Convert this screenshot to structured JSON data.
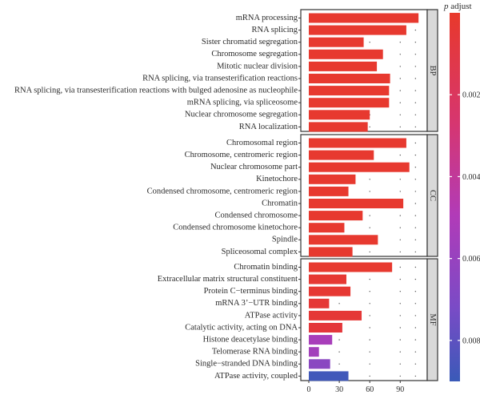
{
  "chart_data": {
    "type": "bar",
    "orientation": "horizontal",
    "x_ticks": [
      0,
      30,
      60,
      90
    ],
    "x_max": 112,
    "panels": [
      {
        "strip": "BP",
        "terms": [
          {
            "label": "mRNA processing",
            "count": 108,
            "p_adjust": 0.0001
          },
          {
            "label": "RNA splicing",
            "count": 96,
            "p_adjust": 0.0001
          },
          {
            "label": "Sister chromatid segregation",
            "count": 54,
            "p_adjust": 0.0001
          },
          {
            "label": "Chromosome segregation",
            "count": 73,
            "p_adjust": 0.0001
          },
          {
            "label": "Mitotic nuclear division",
            "count": 67,
            "p_adjust": 0.0001
          },
          {
            "label": "RNA splicing, via transesterification reactions",
            "count": 80,
            "p_adjust": 0.0001
          },
          {
            "label": "RNA splicing, via transesterification reactions with bulged adenosine as nucleophile",
            "count": 79,
            "p_adjust": 0.0001
          },
          {
            "label": "mRNA splicing, via spliceosome",
            "count": 79,
            "p_adjust": 0.0001
          },
          {
            "label": "Nuclear chromosome segregation",
            "count": 60,
            "p_adjust": 0.0001
          },
          {
            "label": "RNA localization",
            "count": 58,
            "p_adjust": 0.0001
          }
        ]
      },
      {
        "strip": "CC",
        "terms": [
          {
            "label": "Chromosomal region",
            "count": 96,
            "p_adjust": 0.0001
          },
          {
            "label": "Chromosome, centromeric region",
            "count": 64,
            "p_adjust": 0.0001
          },
          {
            "label": "Nuclear chromosome part",
            "count": 99,
            "p_adjust": 0.0001
          },
          {
            "label": "Kinetochore",
            "count": 46,
            "p_adjust": 0.0001
          },
          {
            "label": "Condensed chromosome, centromeric region",
            "count": 39,
            "p_adjust": 0.0001
          },
          {
            "label": "Chromatin",
            "count": 93,
            "p_adjust": 0.0001
          },
          {
            "label": "Condensed chromosome",
            "count": 53,
            "p_adjust": 0.0001
          },
          {
            "label": "Condensed chromosome kinetochore",
            "count": 35,
            "p_adjust": 0.0001
          },
          {
            "label": "Spindle",
            "count": 68,
            "p_adjust": 0.0001
          },
          {
            "label": "Spliceosomal complex",
            "count": 43,
            "p_adjust": 0.0001
          }
        ]
      },
      {
        "strip": "MF",
        "terms": [
          {
            "label": "Chromatin binding",
            "count": 82,
            "p_adjust": 0.0001
          },
          {
            "label": "Extracellular matrix structural constituent",
            "count": 37,
            "p_adjust": 0.0002
          },
          {
            "label": "Protein C−terminus binding",
            "count": 41,
            "p_adjust": 0.0002
          },
          {
            "label": "mRNA 3’−UTR binding",
            "count": 20,
            "p_adjust": 0.0003
          },
          {
            "label": "ATPase activity",
            "count": 52,
            "p_adjust": 0.0003
          },
          {
            "label": "Catalytic activity, acting on DNA",
            "count": 33,
            "p_adjust": 0.0004
          },
          {
            "label": "Histone deacetylase binding",
            "count": 23,
            "p_adjust": 0.0048
          },
          {
            "label": "Telomerase RNA binding",
            "count": 10,
            "p_adjust": 0.005
          },
          {
            "label": "Single−stranded DNA binding",
            "count": 21,
            "p_adjust": 0.0058
          },
          {
            "label": "ATPase activity, coupled",
            "count": 39,
            "p_adjust": 0.0087
          }
        ]
      }
    ],
    "legend": {
      "title_italic": "p",
      "title_rest": " adjust",
      "ticks": [
        0.002,
        0.004,
        0.006,
        0.008
      ],
      "ticks_text": [
        "0.002",
        "0.004",
        "0.006",
        "0.008"
      ],
      "range": [
        0,
        0.009
      ],
      "colors": [
        "#e8392b",
        "#d02f84",
        "#b13bb8",
        "#6e4fc7",
        "#3a5ab8"
      ]
    }
  }
}
